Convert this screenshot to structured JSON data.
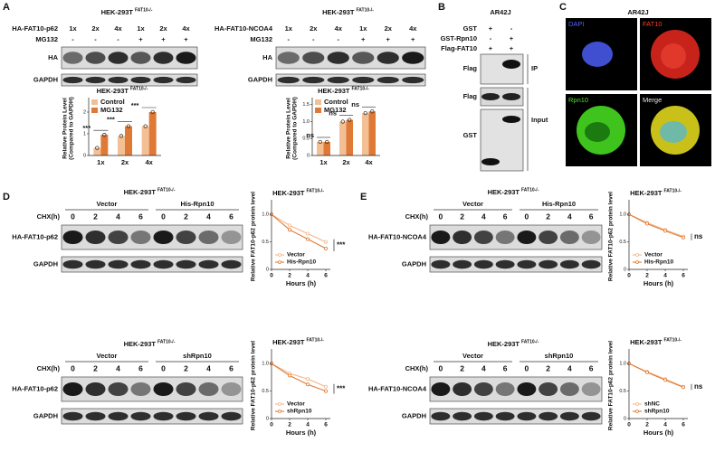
{
  "panel_labels": [
    "A",
    "B",
    "C",
    "D",
    "E"
  ],
  "panel_a": {
    "blots": [
      {
        "title": "HEK-293T",
        "title_sup": "FAT10-/-",
        "construct": "HA-FAT10-p62",
        "treatment": "MG132",
        "doses": [
          "1x",
          "2x",
          "4x",
          "1x",
          "2x",
          "4x"
        ],
        "signs": [
          "-",
          "-",
          "-",
          "+",
          "+",
          "+"
        ],
        "bands": [
          "HA",
          "GAPDH"
        ]
      },
      {
        "title": "HEK-293T",
        "title_sup": "FAT10-/-",
        "construct": "HA-FAT10-NCOA4",
        "treatment": "MG132",
        "doses": [
          "1x",
          "2x",
          "4x",
          "1x",
          "2x",
          "4x"
        ],
        "signs": [
          "-",
          "-",
          "-",
          "+",
          "+",
          "+"
        ],
        "bands": [
          "HA",
          "GAPDH"
        ]
      }
    ]
  },
  "panel_b": {
    "title": "AR42J",
    "rows": [
      "GST",
      "GST-Rpn10",
      "Flag-FAT10"
    ],
    "signs": [
      [
        "+",
        "-"
      ],
      [
        "-",
        "+"
      ],
      [
        "+",
        "+"
      ]
    ],
    "bands": [
      "Flag",
      "Flag",
      "GST"
    ],
    "groups": [
      "IP",
      "Input"
    ]
  },
  "panel_c": {
    "title": "AR42J",
    "channels": [
      "DAPI",
      "FAT10",
      "Rpn10",
      "Merge"
    ]
  },
  "panel_d_e": [
    {
      "title": "HEK-293T",
      "title_sup": "FAT10-/-",
      "groups": [
        "Vector",
        "His-Rpn10"
      ],
      "time_label": "CHX(h)",
      "times": [
        "0",
        "2",
        "4",
        "6",
        "0",
        "2",
        "4",
        "6"
      ],
      "bands": [
        "HA-FAT10-p62",
        "GAPDH"
      ]
    },
    {
      "title": "HEK-293T",
      "title_sup": "FAT10-/-",
      "groups": [
        "Vector",
        "shRpn10"
      ],
      "time_label": "CHX(h)",
      "times": [
        "0",
        "2",
        "4",
        "6",
        "0",
        "2",
        "4",
        "6"
      ],
      "bands": [
        "HA-FAT10-p62",
        "GAPDH"
      ]
    },
    {
      "title": "HEK-293T",
      "title_sup": "FAT10-/-",
      "groups": [
        "Vector",
        "His-Rpn10"
      ],
      "time_label": "CHX(h)",
      "times": [
        "0",
        "2",
        "4",
        "6",
        "0",
        "2",
        "4",
        "6"
      ],
      "bands": [
        "HA-FAT10-NCOA4",
        "GAPDH"
      ]
    },
    {
      "title": "HEK-293T",
      "title_sup": "FAT10-/-",
      "groups": [
        "Vector",
        "shRpn10"
      ],
      "time_label": "CHX(h)",
      "times": [
        "0",
        "2",
        "4",
        "6",
        "0",
        "2",
        "4",
        "6"
      ],
      "bands": [
        "HA-FAT10-NCOA4",
        "GAPDH"
      ]
    }
  ],
  "chart_data": [
    {
      "type": "bar",
      "title": "HEK-293T",
      "title_sup": "FAT10-/-",
      "y_label": [
        "Relative Protein Level",
        "(Compared to GAPDH)"
      ],
      "categories": [
        "1x",
        "2x",
        "4x"
      ],
      "series": [
        {
          "name": "Control",
          "color": "#f3c096",
          "values": [
            0.35,
            0.9,
            1.35
          ]
        },
        {
          "name": "MG132",
          "color": "#df7a36",
          "values": [
            0.95,
            1.35,
            2.0
          ]
        }
      ],
      "ylim": [
        0,
        2.5
      ],
      "yticks": [
        0,
        1,
        2
      ],
      "annotations": [
        "***",
        "***",
        "***"
      ],
      "legend": "upper-left"
    },
    {
      "type": "bar",
      "title": "HEK-293T",
      "title_sup": "FAT10-/-",
      "y_label": [
        "Relative Protein Level",
        "(Compared to GAPDH)"
      ],
      "categories": [
        "1x",
        "2x",
        "4x"
      ],
      "series": [
        {
          "name": "Control",
          "color": "#f3c096",
          "values": [
            0.4,
            1.0,
            1.25
          ]
        },
        {
          "name": "MG132",
          "color": "#df7a36",
          "values": [
            0.4,
            1.05,
            1.3
          ]
        }
      ],
      "ylim": [
        0,
        1.6
      ],
      "yticks": [
        0,
        0.5,
        {
          "value": 1,
          "label": "1.0"
        },
        1.5
      ],
      "annotations": [
        "ns",
        "ns",
        "ns"
      ],
      "legend": "upper-left"
    },
    {
      "type": "line",
      "title": "HEK-293T",
      "title_sup": "FAT10-/-",
      "y_label": "Relative FAT10-p62 protein level",
      "x_label": "Hours (h)",
      "x": [
        0,
        2,
        4,
        6
      ],
      "series": [
        {
          "name": "Vector",
          "color": "#f3b88a",
          "values": [
            1.0,
            0.8,
            0.65,
            0.5
          ]
        },
        {
          "name": "His-Rpn10",
          "color": "#df7a36",
          "values": [
            1.0,
            0.72,
            0.55,
            0.38
          ]
        }
      ],
      "xlim": [
        0,
        6.5
      ],
      "xticks": [
        0,
        2,
        4,
        6
      ],
      "ylim": [
        0,
        1.2
      ],
      "yticks": [
        0,
        0.5,
        {
          "value": 1,
          "label": "1.0"
        }
      ],
      "annotation": "***",
      "legend": "lower-left"
    },
    {
      "type": "line",
      "title": "HEK-293T",
      "title_sup": "FAT10-/-",
      "y_label": "Relative FAT10-p62 protein level",
      "x_label": "Hours (h)",
      "x": [
        0,
        2,
        4,
        6
      ],
      "series": [
        {
          "name": "Vector",
          "color": "#f3b88a",
          "values": [
            1.0,
            0.82,
            0.72,
            0.58
          ]
        },
        {
          "name": "shRpn10",
          "color": "#df7a36",
          "values": [
            1.0,
            0.78,
            0.62,
            0.5
          ]
        }
      ],
      "xlim": [
        0,
        6.5
      ],
      "xticks": [
        0,
        2,
        4,
        6
      ],
      "ylim": [
        0,
        1.2
      ],
      "yticks": [
        0,
        0.5,
        {
          "value": 1,
          "label": "1.0"
        }
      ],
      "annotation": "***",
      "legend": "lower-left"
    },
    {
      "type": "line",
      "title": "HEK-293T",
      "title_sup": "FAT10-/-",
      "y_label": "Relative FAT10-p62 protein level",
      "x_label": "Hours (h)",
      "x": [
        0,
        2,
        4,
        6
      ],
      "series": [
        {
          "name": "Vector",
          "color": "#f3b88a",
          "values": [
            1.0,
            0.85,
            0.72,
            0.6
          ]
        },
        {
          "name": "His-Rpn10",
          "color": "#df7a36",
          "values": [
            1.0,
            0.83,
            0.7,
            0.58
          ]
        }
      ],
      "xlim": [
        0,
        6.5
      ],
      "xticks": [
        0,
        2,
        4,
        6
      ],
      "ylim": [
        0,
        1.2
      ],
      "yticks": [
        0,
        0.5,
        {
          "value": 1,
          "label": "1.0"
        }
      ],
      "annotation": "ns",
      "legend": "lower-left"
    },
    {
      "type": "line",
      "title": "HEK-293T",
      "title_sup": "FAT10-/-",
      "y_label": "Relative FAT10-p62 protein level",
      "x_label": "Hours (h)",
      "x": [
        0,
        2,
        4,
        6
      ],
      "series": [
        {
          "name": "shNC",
          "color": "#f3b88a",
          "values": [
            1.0,
            0.85,
            0.72,
            0.58
          ]
        },
        {
          "name": "shRpn10",
          "color": "#df7a36",
          "values": [
            1.0,
            0.84,
            0.7,
            0.57
          ]
        }
      ],
      "xlim": [
        0,
        6.5
      ],
      "xticks": [
        0,
        2,
        4,
        6
      ],
      "ylim": [
        0,
        1.2
      ],
      "yticks": [
        0,
        0.5,
        {
          "value": 1,
          "label": "1.0"
        }
      ],
      "annotation": "ns",
      "legend": "lower-left"
    }
  ]
}
